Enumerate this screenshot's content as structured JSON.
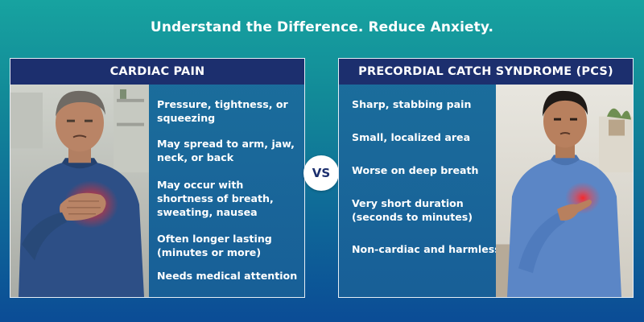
{
  "headline": "Understand the Difference. Reduce Anxiety.",
  "vs_label": "VS",
  "colors": {
    "header_bg": "#1c2f6e",
    "panel_bg": "#1b6e9c",
    "pain_glow": "#ff2a2a",
    "vs_bg": "#ffffff"
  },
  "left_panel": {
    "title": "CARDIAC PAIN",
    "photo": "man-clutching-chest-photo",
    "items": [
      "Pressure, tightness, or squeezing",
      "May spread to arm, jaw, neck, or back",
      "May occur with shortness of breath, sweating, nausea",
      "Often longer lasting (minutes or more)",
      "Needs medical attention"
    ]
  },
  "right_panel": {
    "title": "PRECORDIAL CATCH SYNDROME (PCS)",
    "photo": "young-man-pointing-chest-photo",
    "items": [
      "Sharp, stabbing pain",
      "Small, localized area",
      "Worse on deep breath",
      "Very short duration (seconds to minutes)",
      "Non-cardiac and harmless"
    ]
  }
}
